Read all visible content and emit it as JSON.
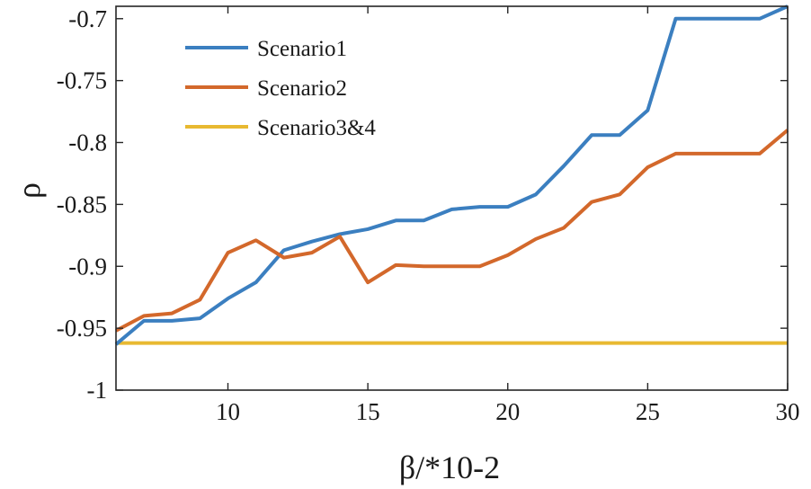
{
  "chart_data": {
    "type": "line",
    "title": "",
    "xlabel": "β/*10-2",
    "ylabel": "ρ",
    "xlim": [
      6,
      30
    ],
    "ylim": [
      -1,
      -0.69
    ],
    "xticks": [
      10,
      15,
      20,
      25,
      30
    ],
    "xtick_labels": [
      "10",
      "15",
      "20",
      "25",
      "30"
    ],
    "yticks": [
      -1,
      -0.95,
      -0.9,
      -0.85,
      -0.8,
      -0.75,
      -0.7
    ],
    "ytick_labels": [
      "-1",
      "-0.95",
      "-0.9",
      "-0.85",
      "-0.8",
      "-0.75",
      "-0.7"
    ],
    "grid": false,
    "legend": "top-left",
    "x": [
      6,
      7,
      8,
      9,
      10,
      11,
      12,
      13,
      14,
      15,
      16,
      17,
      18,
      19,
      20,
      21,
      22,
      23,
      24,
      25,
      26,
      27,
      28,
      29,
      30
    ],
    "series": [
      {
        "name": "Scenario1",
        "color": "#3b7fc0",
        "values": [
          -0.963,
          -0.944,
          -0.944,
          -0.942,
          -0.926,
          -0.913,
          -0.887,
          -0.88,
          -0.874,
          -0.87,
          -0.863,
          -0.863,
          -0.854,
          -0.852,
          -0.852,
          -0.842,
          -0.819,
          -0.794,
          -0.794,
          -0.774,
          -0.7,
          -0.7,
          -0.7,
          -0.7,
          -0.69
        ]
      },
      {
        "name": "Scenario2",
        "color": "#d3682b",
        "values": [
          -0.952,
          -0.94,
          -0.938,
          -0.927,
          -0.889,
          -0.879,
          -0.893,
          -0.889,
          -0.876,
          -0.913,
          -0.899,
          -0.9,
          -0.9,
          -0.9,
          -0.891,
          -0.878,
          -0.869,
          -0.848,
          -0.842,
          -0.82,
          -0.809,
          -0.809,
          -0.809,
          -0.809,
          -0.79
        ]
      },
      {
        "name": "Scenario3&4",
        "color": "#e8b931",
        "values": [
          -0.962,
          -0.962,
          -0.962,
          -0.962,
          -0.962,
          -0.962,
          -0.962,
          -0.962,
          -0.962,
          -0.962,
          -0.962,
          -0.962,
          -0.962,
          -0.962,
          -0.962,
          -0.962,
          -0.962,
          -0.962,
          -0.962,
          -0.962,
          -0.962,
          -0.962,
          -0.962,
          -0.962,
          -0.962
        ]
      }
    ]
  }
}
